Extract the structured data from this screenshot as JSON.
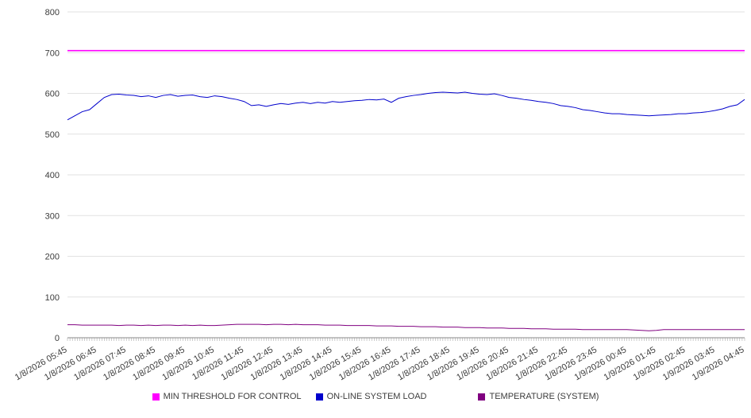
{
  "chart_data": {
    "type": "line",
    "title": "",
    "xlabel": "",
    "ylabel": "",
    "ylim": [
      0,
      800
    ],
    "y_ticks": [
      0,
      100,
      200,
      300,
      400,
      500,
      600,
      700,
      800
    ],
    "grid": "horizontal",
    "legend_position": "bottom",
    "background": "#ffffff",
    "x_minor_ticks": 277,
    "x_tick_labels": [
      "1/8/2026 05:45",
      "1/8/2026 06:45",
      "1/8/2026 07:45",
      "1/8/2026 08:45",
      "1/8/2026 09:45",
      "1/8/2026 10:45",
      "1/8/2026 11:45",
      "1/8/2026 12:45",
      "1/8/2026 13:45",
      "1/8/2026 14:45",
      "1/8/2026 15:45",
      "1/8/2026 16:45",
      "1/8/2026 17:45",
      "1/8/2026 18:45",
      "1/8/2026 19:45",
      "1/8/2026 20:45",
      "1/8/2026 21:45",
      "1/8/2026 22:45",
      "1/8/2026 23:45",
      "1/9/2026 00:45",
      "1/9/2026 01:45",
      "1/9/2026 02:45",
      "1/9/2026 03:45",
      "1/9/2026 04:45"
    ],
    "series": [
      {
        "name": "MIN THRESHOLD FOR CONTROL",
        "color": "#ff00ff",
        "stroke_width": 1.6,
        "constant": 705,
        "values": [
          705,
          705
        ]
      },
      {
        "name": "ON-LINE SYSTEM LOAD",
        "color": "#0000cc",
        "stroke_width": 1,
        "values": [
          535,
          545,
          555,
          560,
          575,
          590,
          597,
          598,
          596,
          595,
          592,
          594,
          590,
          595,
          597,
          593,
          595,
          596,
          592,
          590,
          594,
          592,
          588,
          585,
          580,
          570,
          572,
          568,
          572,
          575,
          573,
          576,
          578,
          575,
          578,
          576,
          580,
          578,
          580,
          582,
          583,
          585,
          584,
          586,
          578,
          588,
          592,
          595,
          597,
          600,
          602,
          603,
          602,
          601,
          603,
          600,
          598,
          597,
          599,
          595,
          590,
          588,
          585,
          583,
          580,
          578,
          575,
          570,
          568,
          565,
          560,
          558,
          555,
          552,
          550,
          550,
          548,
          547,
          546,
          545,
          546,
          547,
          548,
          550,
          550,
          552,
          553,
          555,
          558,
          562,
          568,
          572,
          585
        ]
      },
      {
        "name": "TEMPERATURE (SYSTEM)",
        "color": "#800080",
        "stroke_width": 1,
        "values": [
          32,
          32,
          31,
          31,
          31,
          31,
          31,
          30,
          31,
          31,
          30,
          31,
          30,
          31,
          31,
          30,
          31,
          30,
          31,
          30,
          30,
          31,
          32,
          33,
          33,
          33,
          33,
          32,
          33,
          33,
          32,
          33,
          32,
          32,
          32,
          31,
          31,
          31,
          30,
          30,
          30,
          30,
          29,
          29,
          29,
          28,
          28,
          28,
          27,
          27,
          27,
          26,
          26,
          26,
          25,
          25,
          25,
          24,
          24,
          24,
          23,
          23,
          23,
          22,
          22,
          22,
          21,
          21,
          21,
          21,
          20,
          20,
          20,
          20,
          20,
          20,
          20,
          19,
          18,
          17,
          18,
          20,
          20,
          20,
          20,
          20,
          20,
          20,
          20,
          20,
          20,
          20,
          20
        ]
      }
    ]
  }
}
